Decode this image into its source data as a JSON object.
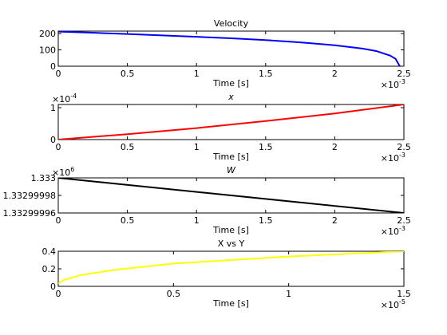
{
  "chart_data": [
    {
      "type": "line",
      "title": "Velocity",
      "xlabel": "Time [s]",
      "x_scale_label": "×10",
      "x_scale_exponent": "-3",
      "x": [
        0,
        0.25,
        0.5,
        0.75,
        1,
        1.25,
        1.5,
        1.75,
        2,
        2.2,
        2.3,
        2.4,
        2.44,
        2.47
      ],
      "values": [
        212,
        205,
        197,
        189,
        180,
        171,
        160,
        146,
        128,
        108,
        93,
        65,
        45,
        0
      ],
      "color": "#0000ff",
      "xlim": [
        0,
        2.5
      ],
      "xticks": [
        0,
        0.5,
        1,
        1.5,
        2,
        2.5
      ],
      "ylim": [
        0,
        215
      ],
      "yticks": [
        0,
        100,
        200
      ]
    },
    {
      "type": "line",
      "title": "x",
      "xlabel": "Time [s]",
      "x_scale_label": "×10",
      "x_scale_exponent": "-3",
      "y_scale_label": "×10",
      "y_scale_exponent": "-4",
      "x": [
        0,
        0.5,
        1,
        1.5,
        2,
        2.5
      ],
      "values": [
        0,
        0.17,
        0.36,
        0.58,
        0.82,
        1.1
      ],
      "color": "#ff0000",
      "xlim": [
        0,
        2.5
      ],
      "xticks": [
        0,
        0.5,
        1,
        1.5,
        2,
        2.5
      ],
      "ylim": [
        0,
        1.1
      ],
      "yticks": [
        0,
        1
      ]
    },
    {
      "type": "line",
      "title": "W",
      "xlabel": "Time [s]",
      "x_scale_label": "×10",
      "x_scale_exponent": "-3",
      "y_scale_label": "×10",
      "y_scale_exponent": "6",
      "x": [
        0,
        2.5
      ],
      "values": [
        1.333,
        1.33299996
      ],
      "color": "#000000",
      "xlim": [
        0,
        2.5
      ],
      "xticks": [
        0,
        0.5,
        1,
        1.5,
        2,
        2.5
      ],
      "ylim": [
        1.33299996,
        1.333
      ],
      "yticks": [
        1.33299996,
        1.33299998,
        1.333
      ]
    },
    {
      "type": "line",
      "title": "X vs Y",
      "xlabel": "Time [s]",
      "x_scale_label": "×10",
      "x_scale_exponent": "-5",
      "x": [
        0,
        0.02,
        0.1,
        0.25,
        0.5,
        0.75,
        1,
        1.25,
        1.5
      ],
      "values": [
        0.03,
        0.07,
        0.13,
        0.19,
        0.26,
        0.3,
        0.34,
        0.37,
        0.4
      ],
      "color": "#ffff00",
      "xlim": [
        0,
        1.5
      ],
      "xticks": [
        0,
        0.5,
        1,
        1.5
      ],
      "ylim": [
        0,
        0.4
      ],
      "yticks": [
        0,
        0.2,
        0.4
      ]
    }
  ]
}
